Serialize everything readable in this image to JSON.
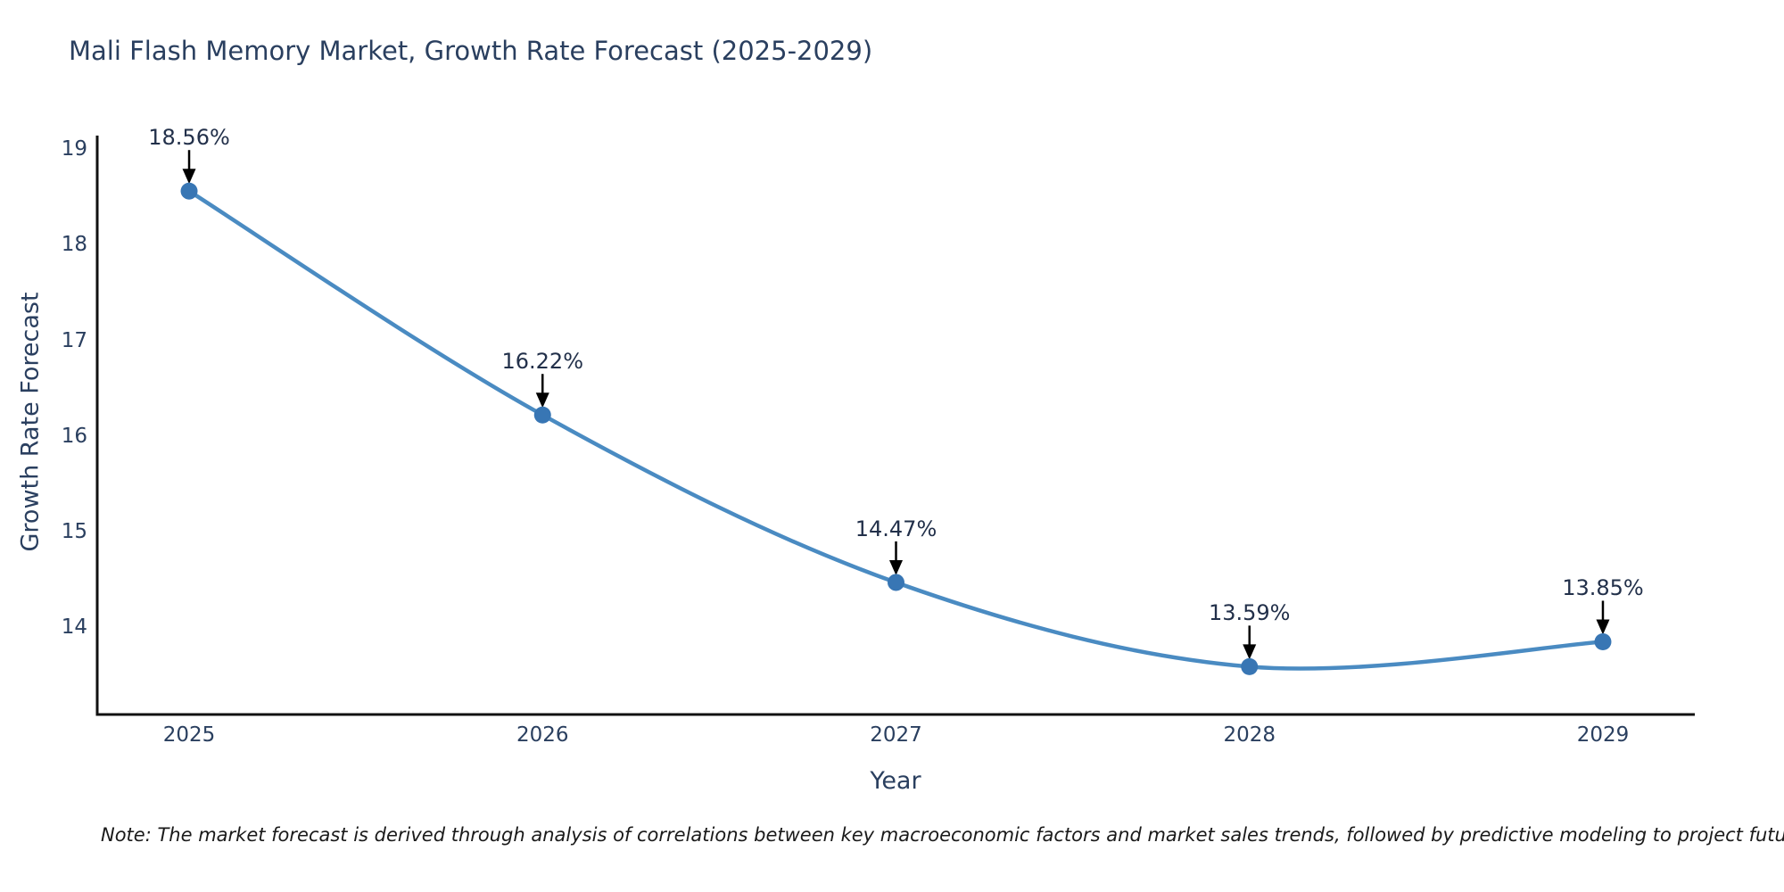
{
  "title": {
    "text": "Mali Flash Memory Market, Growth Rate Forecast (2025-2029)",
    "color": "#2a3f5f"
  },
  "chart_data": {
    "type": "line",
    "line_shape": "spline",
    "x": [
      2025,
      2026,
      2027,
      2028,
      2029
    ],
    "y": [
      18.56,
      16.22,
      14.47,
      13.59,
      13.85
    ],
    "point_labels": [
      "18.56%",
      "16.22%",
      "14.47%",
      "13.59%",
      "13.85%"
    ],
    "xlabel": "Year",
    "ylabel": "Growth Rate Forecast",
    "xticks": [
      "2025",
      "2026",
      "2027",
      "2028",
      "2029"
    ],
    "yticks": [
      "14",
      "15",
      "16",
      "17",
      "18",
      "19"
    ],
    "xlim": [
      2024.74,
      2029.26
    ],
    "ylim": [
      13.09,
      19.14
    ],
    "grid": false,
    "legend": "none",
    "line_color": "#4a8bc2",
    "marker_color": "#3876b4",
    "axis_line_color": "#111111",
    "annotation_arrow_color": "#000000",
    "tick_color": "#2a3f5f"
  },
  "note": {
    "text": "Note: The market forecast is derived through analysis of correlations between key macroeconomic factors and market sales trends, followed by predictive modeling to project future sales."
  }
}
